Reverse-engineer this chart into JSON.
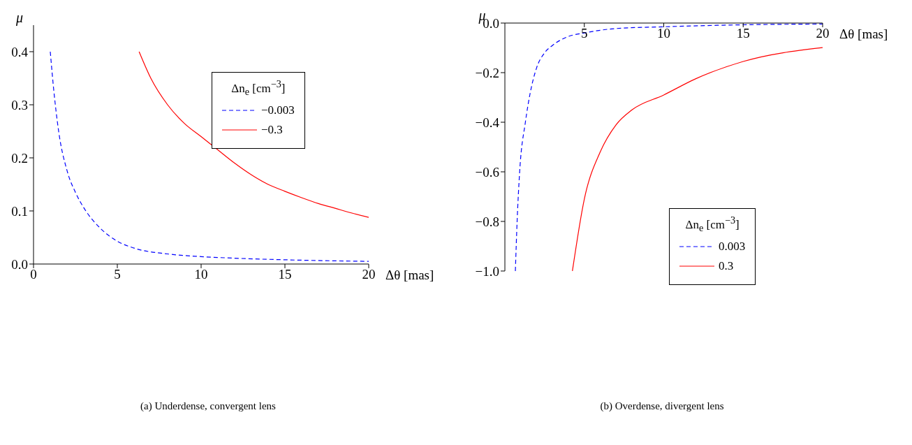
{
  "chart_data": [
    {
      "type": "line",
      "xlabel": "Δθ [mas]",
      "ylabel": "μ",
      "legend_title": "Δn$_{e}$ [cm$^{−3}$]",
      "legend": "top right",
      "xlim": [
        0,
        20
      ],
      "xticks": [
        0,
        5,
        10,
        15,
        20
      ],
      "ylim": [
        0,
        0.45
      ],
      "yticks": [
        {
          "value": 0,
          "label": "0.0"
        },
        0.1,
        0.2,
        0.3,
        0.4
      ],
      "annotations": [
        "(a) Underdense, convergent lens"
      ],
      "series": [
        {
          "name": "−0.003",
          "color": "#0000ff",
          "line_style": "dashed",
          "x": [
            1,
            1.2,
            1.5,
            2,
            2.5,
            3,
            4,
            5,
            6,
            8,
            10,
            12,
            15,
            20
          ],
          "values": [
            0.4,
            0.33,
            0.25,
            0.176,
            0.135,
            0.106,
            0.067,
            0.043,
            0.03,
            0.019,
            0.014,
            0.011,
            0.008,
            0.005
          ]
        },
        {
          "name": "−0.3",
          "color": "#ff0000",
          "line_style": "solid",
          "x": [
            6.3,
            7,
            8,
            9,
            10,
            11,
            12,
            13,
            14,
            15,
            16,
            17,
            18,
            19,
            20
          ],
          "values": [
            0.4,
            0.35,
            0.3,
            0.265,
            0.24,
            0.215,
            0.19,
            0.168,
            0.15,
            0.137,
            0.125,
            0.114,
            0.105,
            0.096,
            0.088
          ]
        }
      ]
    },
    {
      "type": "line",
      "xlabel": "Δθ [mas]",
      "ylabel": "μ",
      "legend_title": "Δn$_{e}$ [cm$^{−3}$]",
      "legend": "right",
      "xlim": [
        0,
        20
      ],
      "xticks": [
        5,
        10,
        15,
        20
      ],
      "ylim": [
        -1,
        0
      ],
      "yticks": [
        {
          "value": -1,
          "label": "−1.0"
        },
        {
          "value": -0.8,
          "label": "−0.8"
        },
        {
          "value": -0.6,
          "label": "−0.6"
        },
        {
          "value": -0.4,
          "label": "−0.4"
        },
        {
          "value": -0.2,
          "label": "−0.2"
        },
        {
          "value": 0,
          "label": "0.0"
        }
      ],
      "annotations": [
        "(b) Overdense, divergent lens"
      ],
      "series": [
        {
          "name": "0.003",
          "color": "#0000ff",
          "line_style": "dashed",
          "x": [
            0.66,
            0.77,
            0.93,
            1.29,
            1.6,
            2,
            2.5,
            3,
            4,
            5,
            7,
            10,
            15,
            20
          ],
          "values": [
            -1,
            -0.8,
            -0.6,
            -0.4,
            -0.28,
            -0.18,
            -0.12,
            -0.09,
            -0.054,
            -0.04,
            -0.022,
            -0.015,
            -0.007,
            -0.004
          ]
        },
        {
          "name": "0.3",
          "color": "#ff0000",
          "line_style": "solid",
          "x": [
            4.25,
            5,
            6,
            7,
            8,
            10,
            12,
            15,
            20
          ],
          "values": [
            -1,
            -0.71,
            -0.52,
            -0.41,
            -0.35,
            -0.29,
            -0.225,
            -0.155,
            -0.099
          ]
        }
      ]
    }
  ]
}
